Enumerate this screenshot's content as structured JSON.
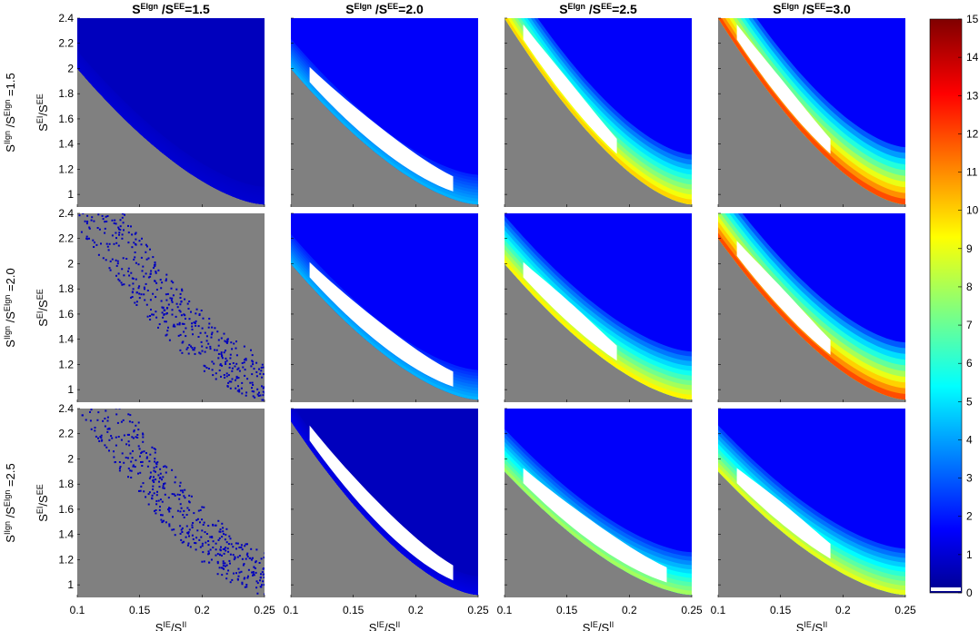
{
  "figure": {
    "col_titles": [
      {
        "s": "S",
        "sup": "EIgn",
        "mid": " /S",
        "sup2": "EE",
        "tail": "=1.5"
      },
      {
        "s": "S",
        "sup": "EIgn",
        "mid": " /S",
        "sup2": "EE",
        "tail": "=2.0"
      },
      {
        "s": "S",
        "sup": "EIgn",
        "mid": " /S",
        "sup2": "EE",
        "tail": "=2.5"
      },
      {
        "s": "S",
        "sup": "EIgn",
        "mid": " /S",
        "sup2": "EE",
        "tail": "=3.0"
      }
    ],
    "row_labels": [
      {
        "s": "S",
        "sup": "IIgn",
        "mid": " /S",
        "sup2": "EIgn",
        "tail": " =1.5"
      },
      {
        "s": "S",
        "sup": "IIgn",
        "mid": " /S",
        "sup2": "EIgn",
        "tail": " =2.0"
      },
      {
        "s": "S",
        "sup": "IIgn",
        "mid": " /S",
        "sup2": "EIgn",
        "tail": " =2.5"
      }
    ],
    "ylabel": {
      "s": "S",
      "sup": "EI",
      "mid": "/S",
      "sup2": "EE"
    },
    "xlabel": {
      "s": "S",
      "sup": "IE",
      "mid": "/S",
      "sup2": "II"
    }
  },
  "chart_data": {
    "type": "heatmap",
    "layout": "3 rows x 4 columns of panels",
    "x_axis": {
      "range": [
        0.1,
        0.25
      ],
      "ticks": [
        0.1,
        0.15,
        0.2,
        0.25
      ],
      "tick_labels": [
        "0.1",
        "0.15",
        "0.2",
        "0.25"
      ]
    },
    "y_axis": {
      "range": [
        0.9,
        2.4
      ],
      "ticks": [
        1,
        1.2,
        1.4,
        1.6,
        1.8,
        2,
        2.2,
        2.4
      ],
      "tick_labels": [
        "1",
        "1.2",
        "1.4",
        "1.6",
        "1.8",
        "2",
        "2.2",
        "2.4"
      ]
    },
    "colorbar": {
      "range": [
        0,
        15
      ],
      "ticks": [
        0,
        1,
        2,
        3,
        4,
        5,
        6,
        7,
        8,
        9,
        10,
        11,
        12,
        13,
        14,
        15
      ],
      "tick_labels": [
        "0",
        "1",
        "2",
        "3",
        "4",
        "5",
        "6",
        "7",
        "8",
        "9",
        "10",
        "11",
        "12",
        "13",
        "14",
        "15"
      ],
      "colormap": "jet"
    },
    "special_colors": {
      "no_data": "#808080",
      "excluded": "#ffffff"
    },
    "panels": [
      {
        "row": 0,
        "col": 0,
        "boundary_y0": 2.0,
        "peak": 1.2,
        "white_band": false,
        "gray_fill": 0.0
      },
      {
        "row": 0,
        "col": 1,
        "boundary_y0": 2.0,
        "peak": 4.5,
        "white_band": true,
        "gray_fill": 0.0
      },
      {
        "row": 0,
        "col": 2,
        "boundary_y0": 2.4,
        "peak": 10,
        "white_band": true,
        "gray_fill": 0.0
      },
      {
        "row": 0,
        "col": 3,
        "boundary_y0": 2.4,
        "peak": 12,
        "white_band": true,
        "gray_fill": 0.0
      },
      {
        "row": 1,
        "col": 0,
        "boundary_y0": 2.3,
        "peak": 1.0,
        "white_band": false,
        "gray_fill": 0.75
      },
      {
        "row": 1,
        "col": 1,
        "boundary_y0": 2.0,
        "peak": 4.5,
        "white_band": true,
        "gray_fill": 0.0
      },
      {
        "row": 1,
        "col": 2,
        "boundary_y0": 2.0,
        "peak": 9.5,
        "white_band": true,
        "gray_fill": 0.0
      },
      {
        "row": 1,
        "col": 3,
        "boundary_y0": 2.2,
        "peak": 12,
        "white_band": true,
        "gray_fill": 0.0
      },
      {
        "row": 2,
        "col": 0,
        "boundary_y0": 2.4,
        "peak": 1.0,
        "white_band": false,
        "gray_fill": 0.95
      },
      {
        "row": 2,
        "col": 1,
        "boundary_y0": 2.3,
        "peak": 1.5,
        "white_band": true,
        "gray_fill": 0.45
      },
      {
        "row": 2,
        "col": 2,
        "boundary_y0": 1.9,
        "peak": 8,
        "white_band": true,
        "gray_fill": 0.0
      },
      {
        "row": 2,
        "col": 3,
        "boundary_y0": 1.9,
        "peak": 9,
        "white_band": true,
        "gray_fill": 0.0
      }
    ]
  }
}
